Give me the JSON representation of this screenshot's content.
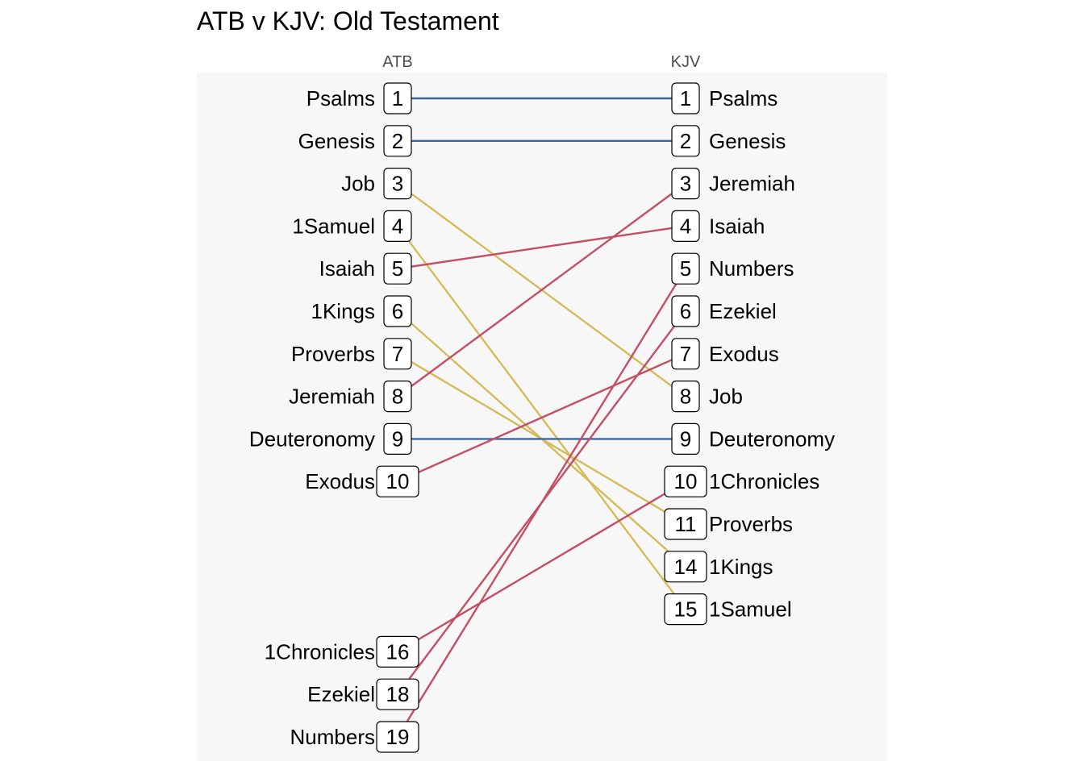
{
  "chart_data": {
    "type": "slope",
    "title": "ATB v KJV: Old Testament",
    "columns": [
      "ATB",
      "KJV"
    ],
    "colors": {
      "same": "#3E66A0",
      "up": "#C44E63",
      "down": "#D4BC5A",
      "panel": "#F7F7F7"
    },
    "left": [
      {
        "book": "Psalms",
        "rank": 1
      },
      {
        "book": "Genesis",
        "rank": 2
      },
      {
        "book": "Job",
        "rank": 3
      },
      {
        "book": "1Samuel",
        "rank": 4
      },
      {
        "book": "Isaiah",
        "rank": 5
      },
      {
        "book": "1Kings",
        "rank": 6
      },
      {
        "book": "Proverbs",
        "rank": 7
      },
      {
        "book": "Jeremiah",
        "rank": 8
      },
      {
        "book": "Deuteronomy",
        "rank": 9
      },
      {
        "book": "Exodus",
        "rank": 10
      },
      {
        "book": "1Chronicles",
        "rank": 16
      },
      {
        "book": "Ezekiel",
        "rank": 18
      },
      {
        "book": "Numbers",
        "rank": 19
      }
    ],
    "right": [
      {
        "book": "Psalms",
        "rank": 1
      },
      {
        "book": "Genesis",
        "rank": 2
      },
      {
        "book": "Jeremiah",
        "rank": 3
      },
      {
        "book": "Isaiah",
        "rank": 4
      },
      {
        "book": "Numbers",
        "rank": 5
      },
      {
        "book": "Ezekiel",
        "rank": 6
      },
      {
        "book": "Exodus",
        "rank": 7
      },
      {
        "book": "Job",
        "rank": 8
      },
      {
        "book": "Deuteronomy",
        "rank": 9
      },
      {
        "book": "1Chronicles",
        "rank": 10
      },
      {
        "book": "Proverbs",
        "rank": 11
      },
      {
        "book": "1Kings",
        "rank": 14
      },
      {
        "book": "1Samuel",
        "rank": 15
      }
    ]
  }
}
